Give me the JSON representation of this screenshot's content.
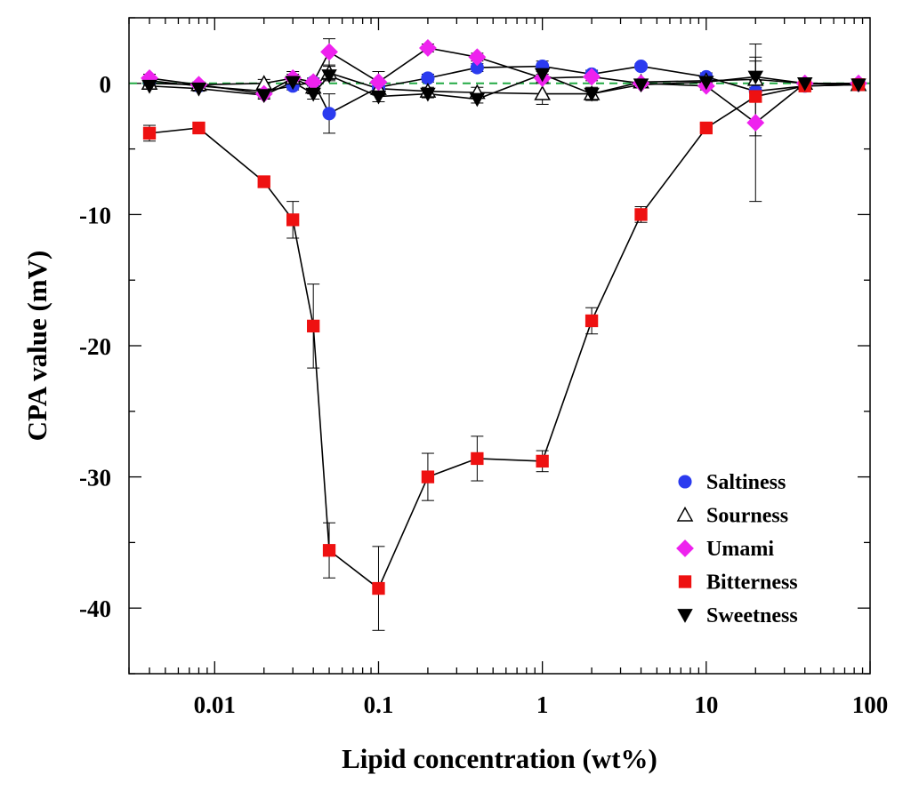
{
  "chart_data": {
    "type": "scatter",
    "title": "",
    "xlabel": "Lipid concentration (wt%)",
    "ylabel": "CPA value (mV)",
    "xscale": "log",
    "xlim": [
      0.003,
      100
    ],
    "ylim": [
      -45,
      5
    ],
    "xticks": [
      {
        "value": 0.01,
        "label": "0.01"
      },
      {
        "value": 0.1,
        "label": "0.1"
      },
      {
        "value": 1,
        "label": "1"
      },
      {
        "value": 10,
        "label": "10"
      },
      {
        "value": 100,
        "label": "100"
      }
    ],
    "yticks": [
      {
        "value": 0,
        "label": "0"
      },
      {
        "value": -10,
        "label": "-10"
      },
      {
        "value": -20,
        "label": "-20"
      },
      {
        "value": -30,
        "label": "-30"
      },
      {
        "value": -40,
        "label": "-40"
      }
    ],
    "reference_line": {
      "y": 0,
      "color": "#22aa44",
      "style": "dashed"
    },
    "legend_position": "bottom-right",
    "series": [
      {
        "name": "Saltiness",
        "marker": "circle",
        "color": "#2b3bef",
        "connected": true,
        "x": [
          0.004,
          0.008,
          0.02,
          0.03,
          0.04,
          0.05,
          0.1,
          0.2,
          0.4,
          1,
          2,
          4,
          10,
          20,
          40,
          85
        ],
        "y": [
          0.2,
          -0.2,
          -0.6,
          -0.2,
          0.1,
          -2.3,
          -0.3,
          0.4,
          1.2,
          1.3,
          0.7,
          1.3,
          0.5,
          -0.6,
          -0.2,
          -0.1
        ],
        "err": [
          0.3,
          0.2,
          0.3,
          0.3,
          0.3,
          1.5,
          0.5,
          0.3,
          0.3,
          0.4,
          0.3,
          0.2,
          0.3,
          0.8,
          0.2,
          0.1
        ]
      },
      {
        "name": "Sourness",
        "marker": "triangle-up",
        "color": "#ffffff",
        "edge": "#000000",
        "connected": true,
        "x": [
          0.004,
          0.008,
          0.02,
          0.03,
          0.04,
          0.05,
          0.1,
          0.2,
          0.4,
          1,
          2,
          4,
          10,
          20,
          40,
          85
        ],
        "y": [
          0.0,
          -0.1,
          0.0,
          0.4,
          -0.3,
          0.8,
          -0.4,
          -0.6,
          -0.7,
          -0.8,
          -0.8,
          0.1,
          0.2,
          0.3,
          0.0,
          -0.1
        ],
        "err": [
          0.2,
          0.2,
          0.3,
          0.5,
          0.5,
          0.5,
          0.5,
          0.3,
          0.4,
          0.8,
          0.5,
          0.2,
          0.2,
          0.6,
          0.2,
          0.1
        ]
      },
      {
        "name": "Umami",
        "marker": "diamond",
        "color": "#ee22ee",
        "connected": true,
        "x": [
          0.004,
          0.008,
          0.02,
          0.03,
          0.04,
          0.05,
          0.1,
          0.2,
          0.4,
          1,
          2,
          4,
          10,
          20,
          40,
          85
        ],
        "y": [
          0.4,
          -0.1,
          -0.8,
          0.4,
          0.1,
          2.4,
          0.1,
          2.7,
          2.0,
          0.4,
          0.5,
          0.0,
          -0.2,
          -3.0,
          0.0,
          0.0
        ],
        "err": [
          0.3,
          0.2,
          0.3,
          0.3,
          0.3,
          1.0,
          0.8,
          0.3,
          0.3,
          0.3,
          0.3,
          0.2,
          0.3,
          6.0,
          0.2,
          0.1
        ]
      },
      {
        "name": "Bitterness",
        "marker": "square",
        "color": "#ee1111",
        "connected": true,
        "x": [
          0.004,
          0.008,
          0.02,
          0.03,
          0.04,
          0.05,
          0.1,
          0.2,
          0.4,
          1,
          2,
          4,
          10,
          20,
          40,
          85
        ],
        "y": [
          -3.8,
          -3.4,
          -7.5,
          -10.4,
          -18.5,
          -35.6,
          -38.5,
          -30.0,
          -28.6,
          -28.8,
          -18.1,
          -10.0,
          -3.4,
          -1.0,
          -0.2,
          -0.1
        ],
        "err": [
          0.6,
          0.3,
          0.4,
          1.4,
          3.2,
          2.1,
          3.2,
          1.8,
          1.7,
          0.8,
          1.0,
          0.6,
          0.3,
          3.0,
          0.2,
          0.1
        ]
      },
      {
        "name": "Sweetness",
        "marker": "triangle-down",
        "color": "#000000",
        "connected": true,
        "x": [
          0.004,
          0.008,
          0.02,
          0.03,
          0.04,
          0.05,
          0.1,
          0.2,
          0.4,
          1,
          2,
          4,
          10,
          20,
          40,
          85
        ],
        "y": [
          -0.2,
          -0.4,
          -0.9,
          0.1,
          -0.8,
          0.6,
          -1.0,
          -0.8,
          -1.2,
          0.7,
          -0.8,
          -0.1,
          0.1,
          0.5,
          0.0,
          -0.1
        ],
        "err": [
          0.2,
          0.2,
          0.3,
          0.4,
          0.4,
          0.4,
          0.4,
          0.3,
          0.3,
          0.5,
          0.4,
          0.2,
          0.2,
          1.2,
          0.2,
          0.1
        ]
      }
    ]
  }
}
